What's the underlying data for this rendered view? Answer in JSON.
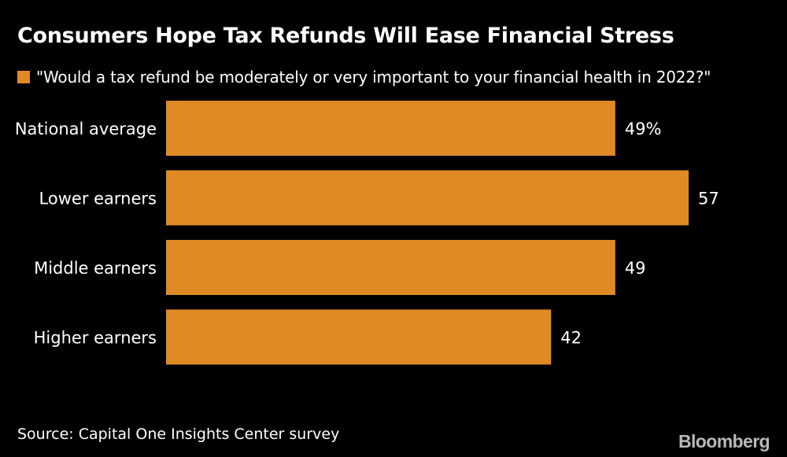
{
  "chart_data": {
    "type": "bar",
    "orientation": "horizontal",
    "title": "Consumers Hope Tax Refunds Will Ease Financial Stress",
    "legend": [
      {
        "name": "\"Would a tax refund be moderately or very important to your financial health in 2022?\"",
        "color": "#e08a25"
      }
    ],
    "categories": [
      "National average",
      "Lower earners",
      "Middle earners",
      "Higher earners"
    ],
    "values": [
      49,
      57,
      49,
      42
    ],
    "value_labels": [
      "49%",
      "57",
      "49",
      "42"
    ],
    "xlim": [
      0,
      57
    ],
    "xlabel": "",
    "ylabel": "",
    "grid": false
  },
  "colors": {
    "background": "#000000",
    "bar": "#e08a25",
    "text": "#ffffff",
    "logo": "#b8b8b8"
  },
  "source": "Source: Capital One Insights Center survey",
  "logo": "Bloomberg"
}
